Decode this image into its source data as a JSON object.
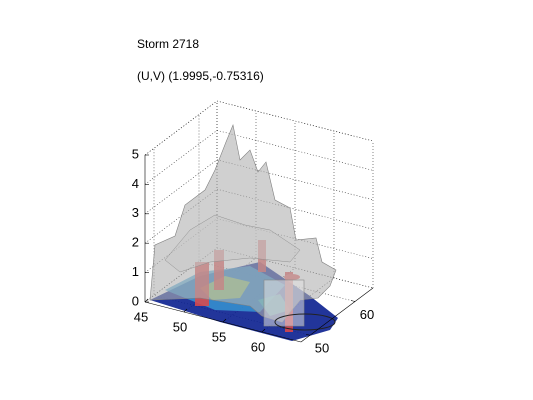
{
  "chart_data": {
    "type": "surface3d",
    "title": "Storm 2718",
    "subtitle": "(U,V) (1.9995,-0.75316)",
    "xlim": [
      45,
      65
    ],
    "xticks": [
      45,
      50,
      55,
      60
    ],
    "ylim": [
      48,
      64
    ],
    "yticks": [
      50,
      60
    ],
    "zlim": [
      0,
      5
    ],
    "zticks": [
      0,
      1,
      2,
      3,
      4,
      5
    ],
    "grid": true
  }
}
